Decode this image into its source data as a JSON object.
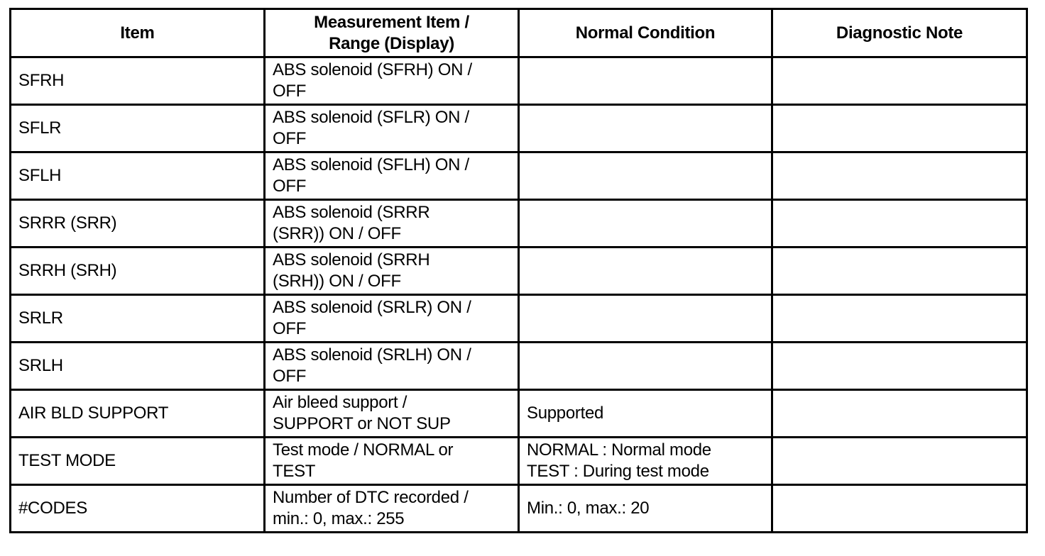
{
  "table": {
    "headers": [
      "Item",
      "Measurement Item /\nRange (Display)",
      "Normal Condition",
      "Diagnostic Note"
    ],
    "rows": [
      [
        "SFRH",
        "ABS solenoid (SFRH) ON /\nOFF",
        "",
        ""
      ],
      [
        "SFLR",
        "ABS solenoid (SFLR) ON /\nOFF",
        "",
        ""
      ],
      [
        "SFLH",
        "ABS solenoid (SFLH) ON /\nOFF",
        "",
        ""
      ],
      [
        "SRRR (SRR)",
        "ABS solenoid (SRRR\n(SRR)) ON / OFF",
        "",
        ""
      ],
      [
        "SRRH (SRH)",
        "ABS solenoid (SRRH\n(SRH)) ON / OFF",
        "",
        ""
      ],
      [
        "SRLR",
        "ABS solenoid (SRLR) ON /\nOFF",
        "",
        ""
      ],
      [
        "SRLH",
        "ABS solenoid (SRLH) ON /\nOFF",
        "",
        ""
      ],
      [
        "AIR BLD SUPPORT",
        "Air bleed support /\nSUPPORT or NOT SUP",
        "Supported",
        ""
      ],
      [
        "TEST MODE",
        "Test mode / NORMAL or\nTEST",
        "NORMAL : Normal mode\nTEST : During test mode",
        ""
      ],
      [
        "#CODES",
        "Number of DTC recorded /\nmin.: 0, max.: 255",
        "Min.: 0, max.: 20",
        ""
      ]
    ]
  }
}
